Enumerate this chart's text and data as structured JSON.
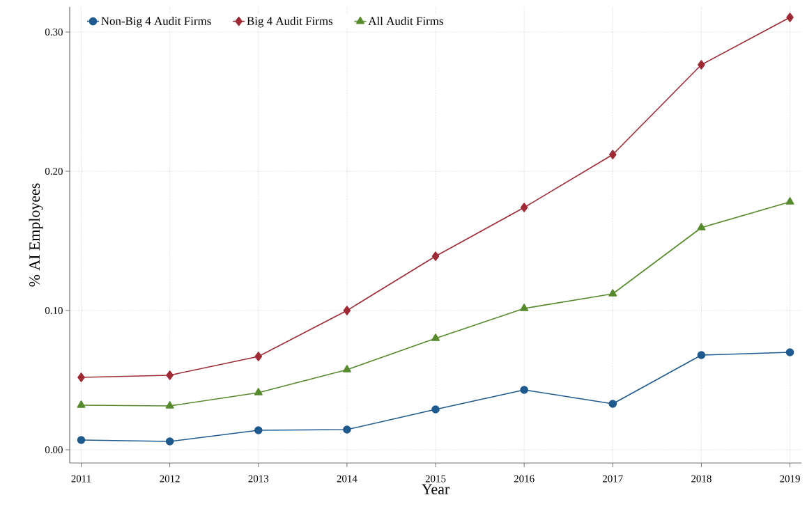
{
  "chart_data": {
    "type": "line",
    "xlabel": "Year",
    "ylabel": "% AI Employees",
    "x": [
      2011,
      2012,
      2013,
      2014,
      2015,
      2016,
      2017,
      2018,
      2019
    ],
    "series": [
      {
        "name": "Non-Big 4 Audit Firms",
        "color": "#1f5a8e",
        "marker": "circle",
        "values": [
          0.007,
          0.006,
          0.014,
          0.0145,
          0.029,
          0.043,
          0.033,
          0.068,
          0.07
        ]
      },
      {
        "name": "Big 4 Audit Firms",
        "color": "#9e2a35",
        "marker": "diamond",
        "values": [
          0.052,
          0.0535,
          0.067,
          0.1,
          0.139,
          0.174,
          0.212,
          0.2765,
          0.3105
        ]
      },
      {
        "name": "All Audit Firms",
        "color": "#568a2c",
        "marker": "triangle",
        "values": [
          0.032,
          0.0315,
          0.041,
          0.0575,
          0.08,
          0.1015,
          0.112,
          0.1595,
          0.178
        ]
      }
    ],
    "xlim": [
      2010.87,
      2019.13
    ],
    "ylim": [
      -0.0095,
      0.318
    ],
    "xticks": [
      2011,
      2012,
      2013,
      2014,
      2015,
      2016,
      2017,
      2018,
      2019
    ],
    "yticks": [
      {
        "value": 0,
        "label": "0.00"
      },
      {
        "value": 0.1,
        "label": "0.10"
      },
      {
        "value": 0.2,
        "label": "0.20"
      },
      {
        "value": 0.3,
        "label": "0.30"
      }
    ],
    "grid": true,
    "legend": "top left",
    "line_style": "solid"
  }
}
